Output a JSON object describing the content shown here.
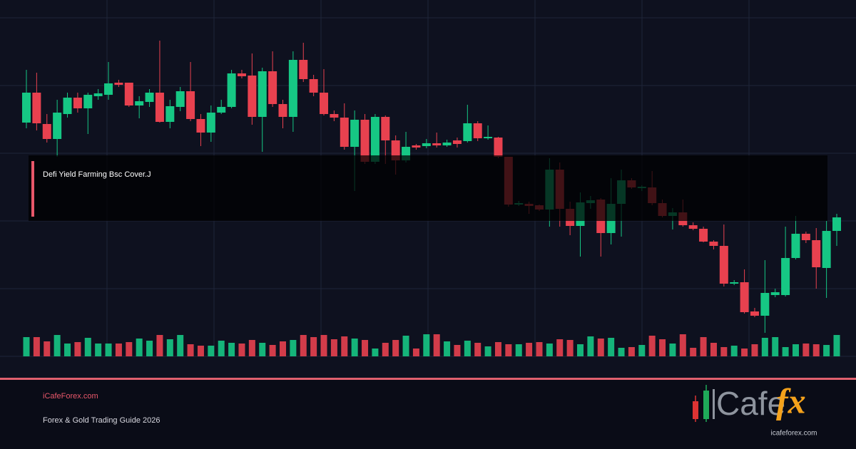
{
  "chart_data": {
    "type": "candlestick",
    "annotation": "Defi Yield Farming Bsc Cover.J",
    "up_color": "#16c784",
    "down_color": "#e8414f",
    "open": [
      328,
      370,
      326,
      305,
      340,
      363,
      348,
      365,
      367,
      384,
      384,
      352,
      357,
      370,
      329,
      350,
      372,
      333,
      314,
      342,
      350,
      397,
      394,
      336,
      400,
      354,
      336,
      416,
      389,
      370,
      340,
      335,
      294,
      332,
      273,
      336,
      303,
      275,
      296,
      295,
      299,
      296,
      303,
      302,
      327,
      306,
      307,
      280,
      213,
      214,
      212,
      206,
      262,
      207,
      183,
      215,
      220,
      173,
      214,
      247,
      236,
      237,
      215,
      197,
      202,
      184,
      179,
      161,
      155,
      102,
      104,
      63,
      57,
      86,
      86,
      138,
      172,
      163,
      124,
      176
    ],
    "high": [
      402,
      398,
      340,
      360,
      370,
      370,
      370,
      375,
      413,
      388,
      384,
      365,
      375,
      443,
      360,
      378,
      413,
      340,
      352,
      360,
      402,
      402,
      425,
      405,
      428,
      360,
      428,
      440,
      395,
      403,
      345,
      355,
      345,
      340,
      340,
      338,
      310,
      315,
      298,
      305,
      314,
      304,
      307,
      353,
      330,
      324,
      308,
      280,
      218,
      217,
      213,
      278,
      272,
      217,
      230,
      225,
      222,
      250,
      262,
      250,
      240,
      260,
      220,
      208,
      220,
      188,
      182,
      163,
      185,
      107,
      122,
      68,
      135,
      95,
      182,
      197,
      175,
      180,
      190,
      200
    ],
    "low": [
      320,
      317,
      300,
      280,
      335,
      342,
      312,
      360,
      360,
      378,
      350,
      334,
      350,
      328,
      320,
      344,
      330,
      295,
      301,
      340,
      348,
      390,
      325,
      287,
      350,
      320,
      315,
      385,
      365,
      338,
      330,
      290,
      232,
      270,
      270,
      270,
      255,
      272,
      290,
      292,
      293,
      294,
      293,
      300,
      302,
      304,
      278,
      210,
      211,
      200,
      204,
      182,
      182,
      170,
      140,
      207,
      140,
      157,
      168,
      235,
      232,
      212,
      195,
      178,
      182,
      177,
      160,
      150,
      98,
      100,
      60,
      55,
      33,
      83,
      84,
      136,
      159,
      95,
      82,
      155
    ],
    "close": [
      370,
      327,
      305,
      342,
      363,
      348,
      367,
      369,
      383,
      381,
      352,
      358,
      370,
      329,
      351,
      372,
      333,
      314,
      342,
      350,
      397,
      393,
      336,
      400,
      354,
      336,
      416,
      389,
      370,
      340,
      335,
      294,
      332,
      273,
      336,
      303,
      275,
      294,
      293,
      299,
      296,
      300,
      298,
      327,
      306,
      308,
      280,
      213,
      215,
      211,
      206,
      262,
      207,
      183,
      216,
      219,
      173,
      214,
      247,
      237,
      238,
      215,
      197,
      202,
      184,
      179,
      161,
      155,
      102,
      104,
      62,
      57,
      89,
      90,
      138,
      172,
      163,
      125,
      176,
      195
    ],
    "volume": [
      27,
      27,
      21,
      30,
      18,
      20,
      26,
      18,
      18,
      18,
      20,
      25,
      22,
      30,
      24,
      30,
      17,
      15,
      15,
      22,
      19,
      18,
      23,
      19,
      16,
      21,
      23,
      30,
      27,
      30,
      24,
      28,
      25,
      23,
      11,
      19,
      23,
      29,
      11,
      31,
      31,
      21,
      16,
      22,
      19,
      14,
      20,
      17,
      17,
      19,
      20,
      18,
      24,
      23,
      17,
      28,
      25,
      26,
      12,
      13,
      16,
      29,
      24,
      18,
      31,
      12,
      27,
      19,
      13,
      15,
      11,
      17,
      26,
      27,
      13,
      17,
      18,
      17,
      16,
      30
    ]
  },
  "footer": {
    "site": "iCafeForex.com",
    "tagline": "Forex & Gold Trading Guide 2026"
  },
  "logo": {
    "wordmark": "Cafe",
    "accent": "fx",
    "url": "icafeforex.com"
  }
}
